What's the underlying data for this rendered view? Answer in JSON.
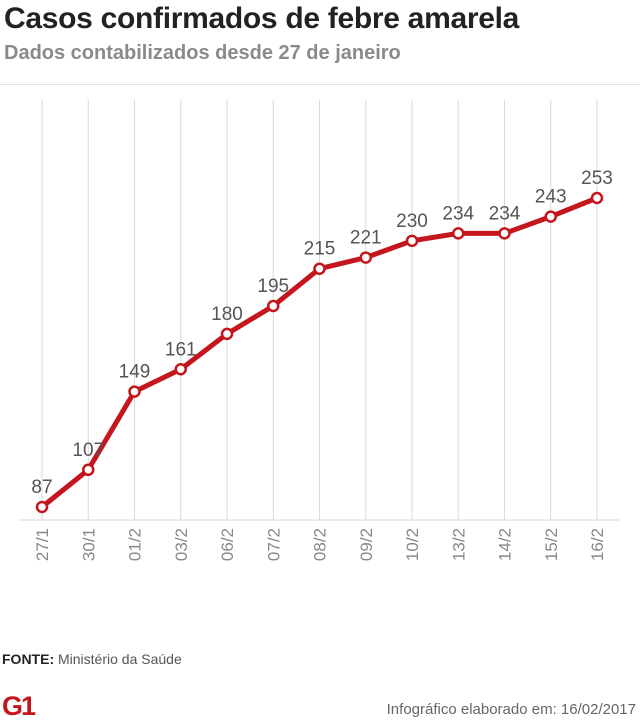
{
  "header": {
    "title": "Casos confirmados de febre amarela",
    "subtitle": "Dados contabilizados desde 27 de janeiro"
  },
  "footer": {
    "source_label": "FONTE:",
    "source_text": "Ministério da Saúde",
    "logo_text": "G1",
    "credit": "Infográfico elaborado em: 16/02/2017"
  },
  "colors": {
    "line": "#c4161c",
    "marker_fill": "#ffffff",
    "grid": "#d9d9d9",
    "label": "#555555",
    "tick": "#888888",
    "logo": "#c4161c"
  },
  "chart_data": {
    "type": "line",
    "title": "Casos confirmados de febre amarela",
    "subtitle": "Dados contabilizados desde 27 de janeiro",
    "categories": [
      "27/1",
      "30/1",
      "01/2",
      "03/2",
      "06/2",
      "07/2",
      "08/2",
      "09/2",
      "10/2",
      "13/2",
      "14/2",
      "15/2",
      "16/2"
    ],
    "series": [
      {
        "values": [
          87,
          107,
          149,
          161,
          180,
          195,
          215,
          221,
          230,
          234,
          234,
          243,
          253
        ]
      }
    ],
    "ylim": [
      80,
      260
    ],
    "grid": "vertical",
    "data_labels": true,
    "legend": "none"
  }
}
